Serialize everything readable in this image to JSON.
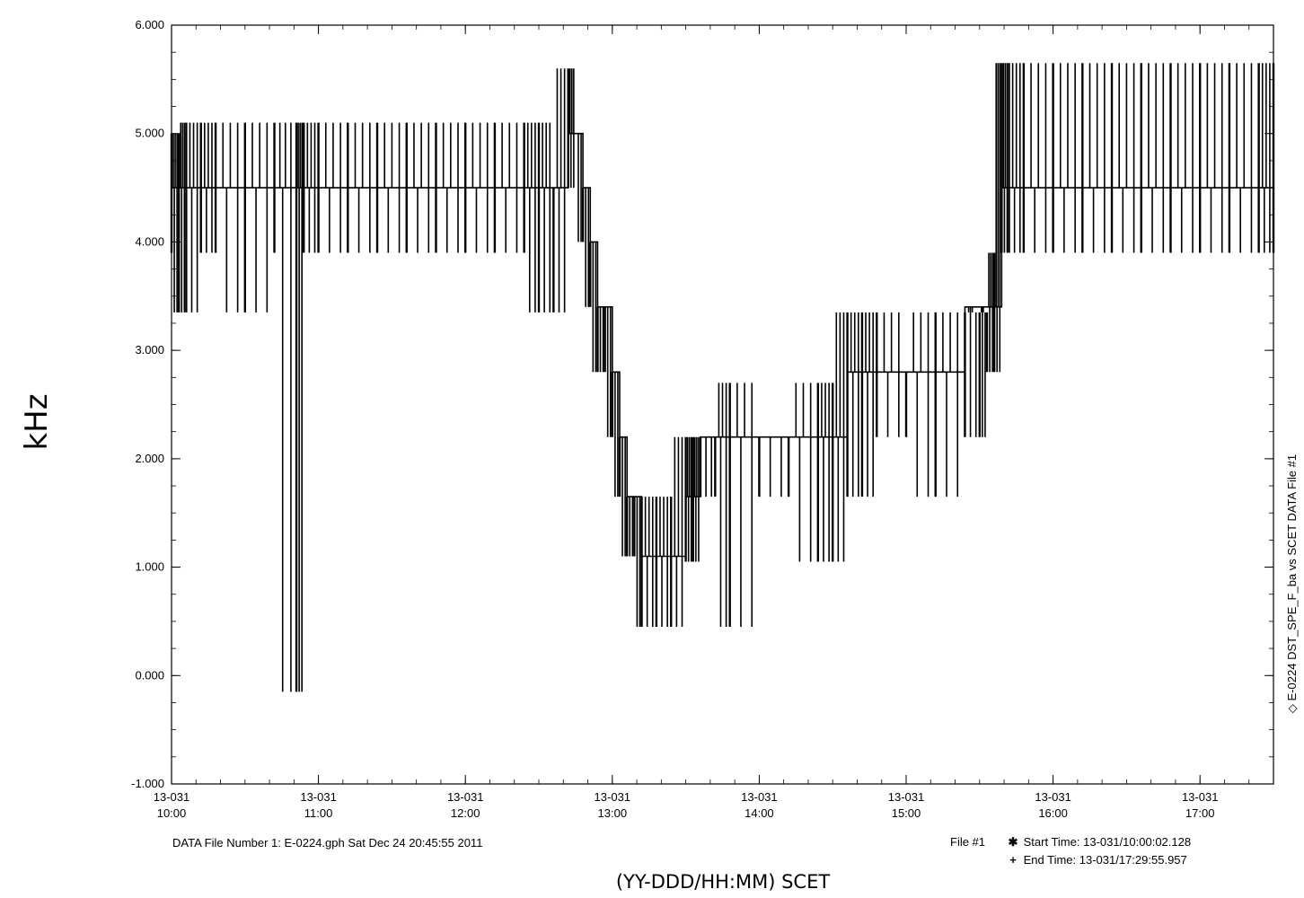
{
  "chart_data": {
    "type": "line",
    "title": "",
    "ylabel": "kHz",
    "xlabel": "(YY-DDD/HH:MM) SCET",
    "ylim": [
      -1.0,
      6.0
    ],
    "y_ticks": [
      "6.000",
      "5.000",
      "4.000",
      "3.000",
      "2.000",
      "1.000",
      "0.000",
      "-1.000"
    ],
    "x_range_hours": [
      10.0,
      17.5
    ],
    "x_ticks": [
      {
        "date": "13-031",
        "time": "10:00"
      },
      {
        "date": "13-031",
        "time": "11:00"
      },
      {
        "date": "13-031",
        "time": "12:00"
      },
      {
        "date": "13-031",
        "time": "13:00"
      },
      {
        "date": "13-031",
        "time": "14:00"
      },
      {
        "date": "13-031",
        "time": "15:00"
      },
      {
        "date": "13-031",
        "time": "16:00"
      },
      {
        "date": "13-031",
        "time": "17:00"
      }
    ],
    "series": [
      {
        "name": "DST_SPE_F_ba",
        "x_hours": [
          10.0,
          10.05,
          10.1,
          10.2,
          10.3,
          10.5,
          10.7,
          10.85,
          10.9,
          11.0,
          11.2,
          11.4,
          11.6,
          11.8,
          12.0,
          12.2,
          12.4,
          12.5,
          12.6,
          12.7,
          12.75,
          12.8,
          12.85,
          12.9,
          12.95,
          13.0,
          13.05,
          13.1,
          13.15,
          13.2,
          13.3,
          13.4,
          13.5,
          13.55,
          13.6,
          13.7,
          13.8,
          14.0,
          14.2,
          14.4,
          14.5,
          14.6,
          14.7,
          14.8,
          15.0,
          15.2,
          15.4,
          15.5,
          15.55,
          15.6,
          15.65,
          15.7,
          15.8,
          16.0,
          16.2,
          16.4,
          16.6,
          16.8,
          17.0,
          17.2,
          17.4,
          17.5
        ],
        "y_khz": [
          4.5,
          4.5,
          4.5,
          4.5,
          4.5,
          4.5,
          4.5,
          4.5,
          4.5,
          4.5,
          4.5,
          4.5,
          4.5,
          4.5,
          4.5,
          4.5,
          4.5,
          4.5,
          4.5,
          5.0,
          5.0,
          4.5,
          4.0,
          3.4,
          3.4,
          2.8,
          2.2,
          1.65,
          1.65,
          1.1,
          1.1,
          1.1,
          1.65,
          1.65,
          2.2,
          2.2,
          2.2,
          2.2,
          2.2,
          2.2,
          2.2,
          2.8,
          2.8,
          2.8,
          2.8,
          2.8,
          3.4,
          3.4,
          3.4,
          3.4,
          4.5,
          4.5,
          4.5,
          4.5,
          4.5,
          4.5,
          4.5,
          4.5,
          4.5,
          4.5,
          4.5,
          4.5
        ],
        "y_high_khz": [
          5.0,
          5.0,
          5.1,
          5.1,
          5.1,
          5.1,
          5.1,
          5.1,
          5.1,
          5.1,
          5.1,
          5.1,
          5.1,
          5.1,
          5.1,
          5.1,
          5.1,
          5.1,
          4.5,
          5.6,
          5.0,
          4.5,
          4.0,
          3.4,
          3.4,
          2.8,
          2.2,
          1.65,
          1.65,
          1.65,
          1.65,
          1.65,
          2.2,
          2.2,
          2.2,
          2.2,
          2.7,
          2.2,
          2.2,
          2.7,
          2.7,
          3.35,
          3.35,
          3.35,
          2.8,
          3.35,
          3.35,
          3.35,
          3.35,
          3.9,
          5.65,
          5.65,
          5.65,
          5.65,
          5.65,
          5.65,
          5.65,
          5.65,
          5.65,
          5.65,
          5.65,
          5.65
        ],
        "y_low_khz": [
          3.9,
          3.35,
          3.35,
          3.9,
          3.9,
          3.35,
          3.9,
          -0.15,
          3.9,
          3.9,
          3.9,
          3.9,
          3.9,
          3.9,
          3.9,
          3.9,
          3.9,
          3.35,
          3.35,
          4.5,
          5.0,
          4.0,
          3.4,
          2.8,
          2.8,
          2.2,
          1.65,
          1.1,
          1.1,
          0.45,
          0.45,
          0.45,
          1.05,
          1.05,
          1.65,
          1.65,
          0.45,
          1.65,
          1.65,
          1.05,
          1.05,
          1.65,
          1.65,
          2.2,
          2.2,
          1.65,
          2.2,
          2.2,
          2.8,
          2.8,
          3.9,
          3.9,
          3.9,
          3.9,
          3.9,
          3.9,
          3.9,
          3.9,
          3.9,
          3.9,
          3.9,
          3.9
        ]
      }
    ],
    "grid": false,
    "legend_position": "right, vertical"
  },
  "right_legend": "◇ E-0224  DST_SPE_F_ba  vs  SCET  DATA File #1",
  "footer": {
    "file_info": "DATA File Number 1: E-0224.gph  Sat Dec 24 20:45:55 2011",
    "file_tag": "File #1",
    "start_marker": "✱",
    "start_time": "Start Time: 13-031/10:00:02.128",
    "end_marker": "+",
    "end_time": "End Time: 13-031/17:29:55.957"
  }
}
